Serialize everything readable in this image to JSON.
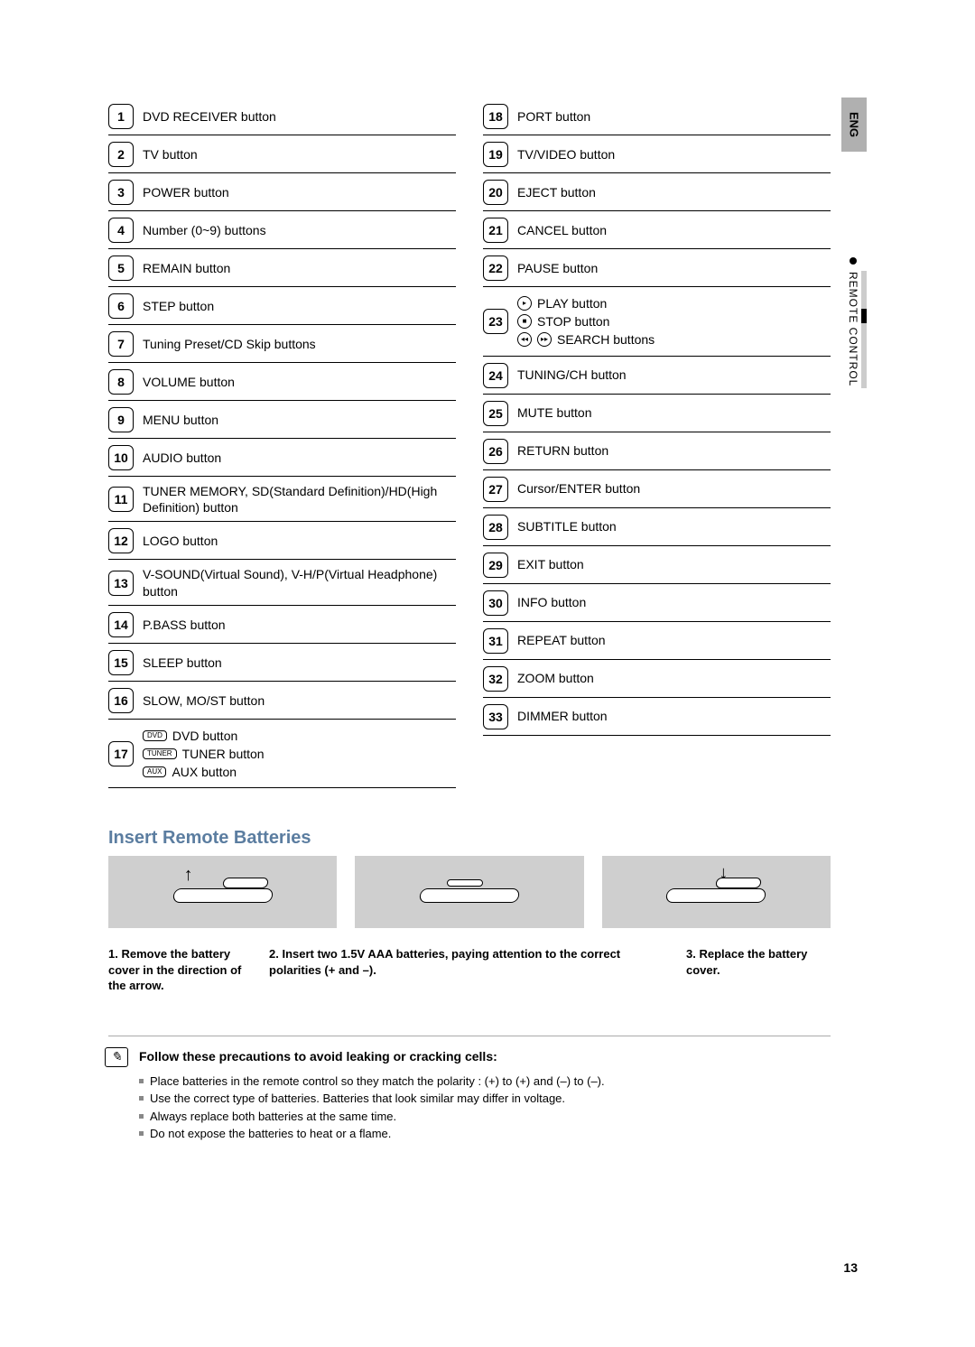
{
  "side": {
    "eng": "ENG",
    "section": "REMOTE CONTROL"
  },
  "left": [
    {
      "n": "1",
      "t": "DVD RECEIVER button"
    },
    {
      "n": "2",
      "t": "TV button"
    },
    {
      "n": "3",
      "t": "POWER button"
    },
    {
      "n": "4",
      "t": "Number (0~9) buttons"
    },
    {
      "n": "5",
      "t": "REMAIN button"
    },
    {
      "n": "6",
      "t": "STEP button"
    },
    {
      "n": "7",
      "t": "Tuning Preset/CD Skip buttons"
    },
    {
      "n": "8",
      "t": "VOLUME button"
    },
    {
      "n": "9",
      "t": "MENU button"
    },
    {
      "n": "10",
      "t": "AUDIO button"
    },
    {
      "n": "11",
      "t": "TUNER MEMORY, SD(Standard Definition)/HD(High Definition) button"
    },
    {
      "n": "12",
      "t": "LOGO button"
    },
    {
      "n": "13",
      "t": "V-SOUND(Virtual Sound), V-H/P(Virtual Headphone) button"
    },
    {
      "n": "14",
      "t": "P.BASS button"
    },
    {
      "n": "15",
      "t": "SLEEP button"
    },
    {
      "n": "16",
      "t": "SLOW, MO/ST button"
    }
  ],
  "left17": {
    "n": "17",
    "dvd_pill": "DVD",
    "dvd": "DVD button",
    "tuner_pill": "TUNER",
    "tuner": "TUNER button",
    "aux_pill": "AUX",
    "aux": "AUX button"
  },
  "right_a": [
    {
      "n": "18",
      "t": "PORT button"
    },
    {
      "n": "19",
      "t": "TV/VIDEO button"
    },
    {
      "n": "20",
      "t": "EJECT button"
    },
    {
      "n": "21",
      "t": "CANCEL button"
    },
    {
      "n": "22",
      "t": "PAUSE button"
    }
  ],
  "right23": {
    "n": "23",
    "play": "PLAY button",
    "stop": "STOP button",
    "search": "SEARCH buttons"
  },
  "right_b": [
    {
      "n": "24",
      "t": "TUNING/CH button"
    },
    {
      "n": "25",
      "t": "MUTE button"
    },
    {
      "n": "26",
      "t": "RETURN button"
    },
    {
      "n": "27",
      "t": "Cursor/ENTER button"
    },
    {
      "n": "28",
      "t": "SUBTITLE button"
    },
    {
      "n": "29",
      "t": "EXIT button"
    },
    {
      "n": "30",
      "t": "INFO button"
    },
    {
      "n": "31",
      "t": "REPEAT button"
    },
    {
      "n": "32",
      "t": "ZOOM button"
    },
    {
      "n": "33",
      "t": "DIMMER button"
    }
  ],
  "batteries": {
    "title": "Insert Remote Batteries",
    "step1": "Remove the battery cover in the direction of the arrow.",
    "step2": "Insert two 1.5V AAA batteries, paying attention to the correct polarities (+ and –).",
    "step3": "Replace the battery cover.",
    "n1": "1.",
    "n2": "2.",
    "n3": "3."
  },
  "prec": {
    "head": "Follow these precautions to avoid leaking or cracking cells:",
    "items": [
      "Place batteries in the remote control so they match the polarity : (+) to (+) and (–) to (–).",
      "Use the correct type of batteries. Batteries that look similar may differ in voltage.",
      "Always replace both batteries at the same time.",
      "Do not expose the batteries to heat or a flame."
    ]
  },
  "page": "13"
}
